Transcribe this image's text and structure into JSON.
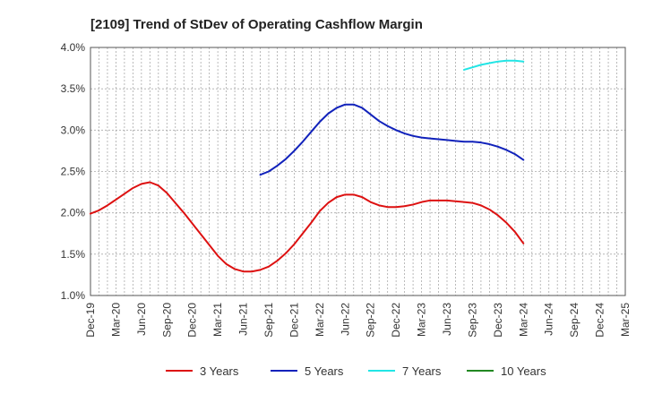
{
  "chart_data": {
    "type": "line",
    "title": "[2109]  Trend of StDev of Operating Cashflow Margin",
    "xlabel": "",
    "ylabel": "",
    "ylim": [
      1.0,
      4.0
    ],
    "yticks": [
      "1.0%",
      "1.5%",
      "2.0%",
      "2.5%",
      "3.0%",
      "3.5%",
      "4.0%"
    ],
    "categories": [
      "Dec-19",
      "Mar-20",
      "Jun-20",
      "Sep-20",
      "Dec-20",
      "Mar-21",
      "Jun-21",
      "Sep-21",
      "Dec-21",
      "Mar-22",
      "Jun-22",
      "Sep-22",
      "Dec-22",
      "Mar-23",
      "Jun-23",
      "Sep-23",
      "Dec-23",
      "Mar-24",
      "Jun-24",
      "Sep-24",
      "Dec-24",
      "Mar-25"
    ],
    "grid": true,
    "legend_position": "bottom",
    "series": [
      {
        "name": "3 Years",
        "color": "#dd1111",
        "x": [
          "Dec-19",
          "Jan-20",
          "Feb-20",
          "Mar-20",
          "Apr-20",
          "May-20",
          "Jun-20",
          "Jul-20",
          "Aug-20",
          "Sep-20",
          "Oct-20",
          "Nov-20",
          "Dec-20",
          "Jan-21",
          "Feb-21",
          "Mar-21",
          "Apr-21",
          "May-21",
          "Jun-21",
          "Jul-21",
          "Aug-21",
          "Sep-21",
          "Oct-21",
          "Nov-21",
          "Dec-21",
          "Jan-22",
          "Feb-22",
          "Mar-22",
          "Apr-22",
          "May-22",
          "Jun-22",
          "Jul-22",
          "Aug-22",
          "Sep-22",
          "Oct-22",
          "Nov-22",
          "Dec-22",
          "Jan-23",
          "Feb-23",
          "Mar-23",
          "Apr-23",
          "May-23",
          "Jun-23",
          "Jul-23",
          "Aug-23",
          "Sep-23",
          "Oct-23",
          "Nov-23",
          "Dec-23",
          "Jan-24",
          "Feb-24",
          "Mar-24"
        ],
        "values": [
          1.99,
          2.03,
          2.09,
          2.16,
          2.23,
          2.3,
          2.35,
          2.37,
          2.33,
          2.24,
          2.12,
          2.0,
          1.87,
          1.74,
          1.61,
          1.48,
          1.38,
          1.32,
          1.29,
          1.29,
          1.31,
          1.35,
          1.42,
          1.51,
          1.62,
          1.75,
          1.88,
          2.02,
          2.12,
          2.19,
          2.22,
          2.22,
          2.19,
          2.13,
          2.09,
          2.07,
          2.07,
          2.08,
          2.1,
          2.13,
          2.15,
          2.15,
          2.15,
          2.14,
          2.13,
          2.12,
          2.09,
          2.04,
          1.97,
          1.88,
          1.77,
          1.63
        ]
      },
      {
        "name": "5 Years",
        "color": "#1122bb",
        "x": [
          "Aug-21",
          "Sep-21",
          "Oct-21",
          "Nov-21",
          "Dec-21",
          "Jan-22",
          "Feb-22",
          "Mar-22",
          "Apr-22",
          "May-22",
          "Jun-22",
          "Jul-22",
          "Aug-22",
          "Sep-22",
          "Oct-22",
          "Nov-22",
          "Dec-22",
          "Jan-23",
          "Feb-23",
          "Mar-23",
          "Apr-23",
          "May-23",
          "Jun-23",
          "Jul-23",
          "Aug-23",
          "Sep-23",
          "Oct-23",
          "Nov-23",
          "Dec-23",
          "Jan-24",
          "Feb-24",
          "Mar-24"
        ],
        "values": [
          2.46,
          2.5,
          2.57,
          2.65,
          2.75,
          2.86,
          2.98,
          3.1,
          3.2,
          3.27,
          3.31,
          3.31,
          3.27,
          3.19,
          3.11,
          3.05,
          3.0,
          2.96,
          2.93,
          2.91,
          2.9,
          2.89,
          2.88,
          2.87,
          2.86,
          2.86,
          2.85,
          2.83,
          2.8,
          2.76,
          2.71,
          2.64
        ]
      },
      {
        "name": "7 Years",
        "color": "#22e5e5",
        "x": [
          "Aug-23",
          "Sep-23",
          "Oct-23",
          "Nov-23",
          "Dec-23",
          "Jan-24",
          "Feb-24",
          "Mar-24"
        ],
        "values": [
          3.73,
          3.76,
          3.79,
          3.81,
          3.83,
          3.84,
          3.84,
          3.83
        ]
      },
      {
        "name": "10 Years",
        "color": "#228822",
        "x": [],
        "values": []
      }
    ]
  }
}
